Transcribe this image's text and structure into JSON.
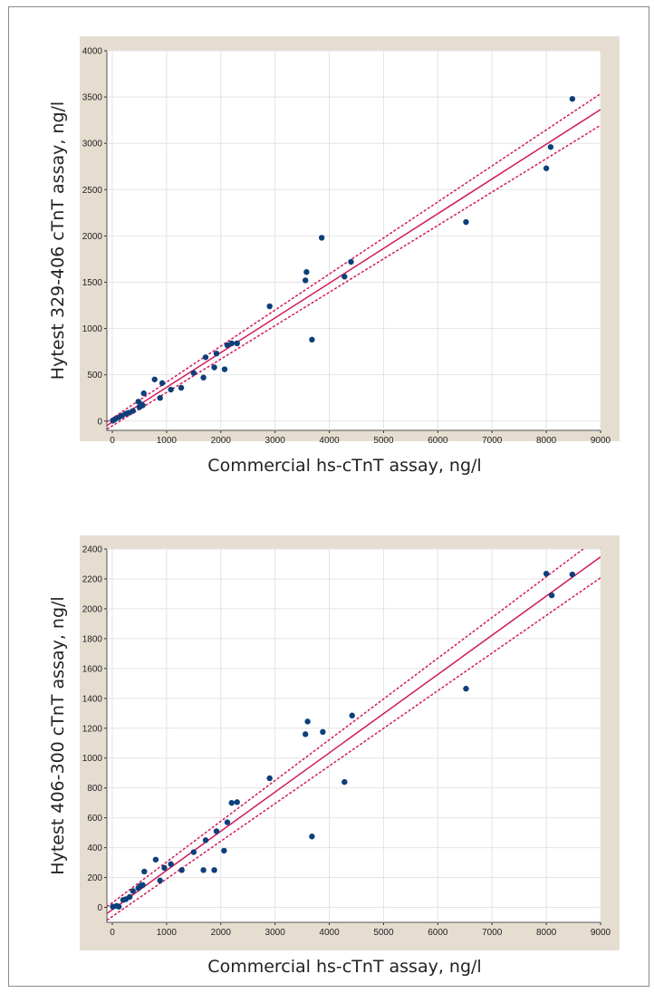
{
  "colors": {
    "panel_bg": "#e6ddd1",
    "plot_bg": "#ffffff",
    "grid": "#e4e4e4",
    "point": "#0d3f7a",
    "fit_line": "#d11a5c",
    "ci_line": "#d11a5c"
  },
  "chart_data": [
    {
      "type": "scatter",
      "xlabel": "Commercial hs-cTnT assay, ng/l",
      "ylabel": "Hytest 329-406 cTnT assay, ng/l",
      "xlim": [
        -100,
        9000
      ],
      "ylim": [
        -100,
        4000
      ],
      "x_ticks": [
        0,
        1000,
        2000,
        3000,
        4000,
        5000,
        6000,
        7000,
        8000,
        9000
      ],
      "y_ticks": [
        0,
        500,
        1000,
        1500,
        2000,
        2500,
        3000,
        3500,
        4000
      ],
      "grid": true,
      "regression": {
        "slope": 0.375,
        "intercept": -10
      },
      "confidence_band": {
        "offset_at_min": 40,
        "offset_at_max": 170
      },
      "points": [
        [
          10,
          5
        ],
        [
          50,
          20
        ],
        [
          120,
          40
        ],
        [
          180,
          60
        ],
        [
          250,
          80
        ],
        [
          300,
          90
        ],
        [
          380,
          110
        ],
        [
          480,
          210
        ],
        [
          500,
          150
        ],
        [
          530,
          180
        ],
        [
          560,
          170
        ],
        [
          580,
          300
        ],
        [
          780,
          450
        ],
        [
          880,
          250
        ],
        [
          920,
          410
        ],
        [
          1080,
          340
        ],
        [
          1270,
          360
        ],
        [
          1500,
          520
        ],
        [
          1680,
          470
        ],
        [
          1720,
          690
        ],
        [
          1880,
          580
        ],
        [
          1920,
          730
        ],
        [
          2070,
          560
        ],
        [
          2120,
          820
        ],
        [
          2200,
          840
        ],
        [
          2300,
          840
        ],
        [
          2900,
          1240
        ],
        [
          3560,
          1520
        ],
        [
          3580,
          1610
        ],
        [
          3680,
          880
        ],
        [
          3860,
          1980
        ],
        [
          4280,
          1560
        ],
        [
          4400,
          1720
        ],
        [
          6520,
          2150
        ],
        [
          8000,
          2730
        ],
        [
          8080,
          2960
        ],
        [
          8480,
          3480
        ]
      ]
    },
    {
      "type": "scatter",
      "xlabel": "Commercial hs-cTnT assay, ng/l",
      "ylabel": "Hytest 406-300 cTnT assay, ng/l",
      "xlim": [
        -100,
        9000
      ],
      "ylim": [
        -100,
        2400
      ],
      "x_ticks": [
        0,
        1000,
        2000,
        3000,
        4000,
        5000,
        6000,
        7000,
        8000,
        9000
      ],
      "y_ticks": [
        0,
        200,
        400,
        600,
        800,
        1000,
        1200,
        1400,
        1600,
        1800,
        2000,
        2200,
        2400
      ],
      "grid": true,
      "regression": {
        "slope": 0.2625,
        "intercept": -15
      },
      "confidence_band": {
        "offset_at_min": 45,
        "offset_at_max": 140
      },
      "points": [
        [
          10,
          5
        ],
        [
          80,
          10
        ],
        [
          120,
          5
        ],
        [
          200,
          50
        ],
        [
          250,
          55
        ],
        [
          320,
          70
        ],
        [
          380,
          110
        ],
        [
          480,
          130
        ],
        [
          520,
          145
        ],
        [
          560,
          150
        ],
        [
          590,
          240
        ],
        [
          800,
          320
        ],
        [
          880,
          180
        ],
        [
          960,
          265
        ],
        [
          1080,
          290
        ],
        [
          1280,
          250
        ],
        [
          1500,
          370
        ],
        [
          1680,
          250
        ],
        [
          1720,
          450
        ],
        [
          1880,
          250
        ],
        [
          1920,
          510
        ],
        [
          2060,
          380
        ],
        [
          2120,
          570
        ],
        [
          2200,
          700
        ],
        [
          2300,
          705
        ],
        [
          2900,
          865
        ],
        [
          3560,
          1160
        ],
        [
          3600,
          1245
        ],
        [
          3680,
          475
        ],
        [
          3880,
          1175
        ],
        [
          4280,
          840
        ],
        [
          4420,
          1285
        ],
        [
          6520,
          1465
        ],
        [
          8000,
          2235
        ],
        [
          8100,
          2090
        ],
        [
          8480,
          2230
        ]
      ]
    }
  ]
}
